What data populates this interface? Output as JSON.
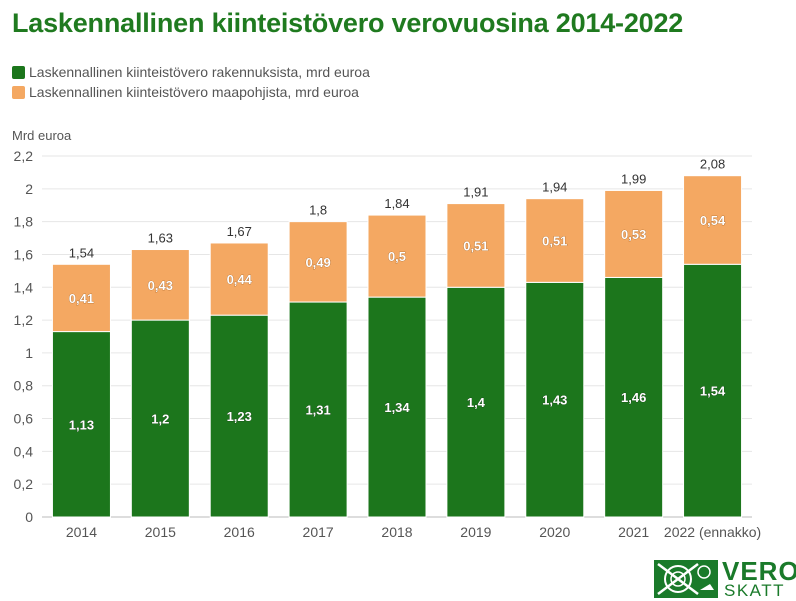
{
  "title": "Laskennallinen kiinteistövero verovuosina 2014-2022",
  "legend": [
    {
      "label": "Laskennallinen kiinteistövero rakennuksista, mrd euroa",
      "color": "#1c761c"
    },
    {
      "label": "Laskennallinen kiinteistövero maapohjista, mrd euroa",
      "color": "#f4a862"
    }
  ],
  "logo": {
    "line1": "VERO",
    "line2": "SKATT",
    "color": "#1a7a2a"
  },
  "chart_data": {
    "type": "bar",
    "stacked": true,
    "ylabel": "Mrd euroa",
    "ylim": [
      0,
      2.2
    ],
    "yticks": [
      "0",
      "0,2",
      "0,4",
      "0,6",
      "0,8",
      "1",
      "1,2",
      "1,4",
      "1,6",
      "1,8",
      "2",
      "2,2"
    ],
    "grid": true,
    "legend_position": "top-left",
    "categories": [
      "2014",
      "2015",
      "2016",
      "2017",
      "2018",
      "2019",
      "2020",
      "2021",
      "2022 (ennakko)"
    ],
    "series": [
      {
        "name": "Laskennallinen kiinteistövero rakennuksista, mrd euroa",
        "color": "#1c761c",
        "values": [
          1.13,
          1.2,
          1.23,
          1.31,
          1.34,
          1.4,
          1.43,
          1.46,
          1.54
        ],
        "labels": [
          "1,13",
          "1,2",
          "1,23",
          "1,31",
          "1,34",
          "1,4",
          "1,43",
          "1,46",
          "1,54"
        ]
      },
      {
        "name": "Laskennallinen kiinteistövero maapohjista, mrd euroa",
        "color": "#f4a862",
        "values": [
          0.41,
          0.43,
          0.44,
          0.49,
          0.5,
          0.51,
          0.51,
          0.53,
          0.54
        ],
        "labels": [
          "0,41",
          "0,43",
          "0,44",
          "0,49",
          "0,5",
          "0,51",
          "0,51",
          "0,53",
          "0,54"
        ]
      }
    ],
    "totals": [
      1.54,
      1.63,
      1.67,
      1.8,
      1.84,
      1.91,
      1.94,
      1.99,
      2.08
    ],
    "total_labels": [
      "1,54",
      "1,63",
      "1,67",
      "1,8",
      "1,84",
      "1,91",
      "1,94",
      "1,99",
      "2,08"
    ]
  }
}
